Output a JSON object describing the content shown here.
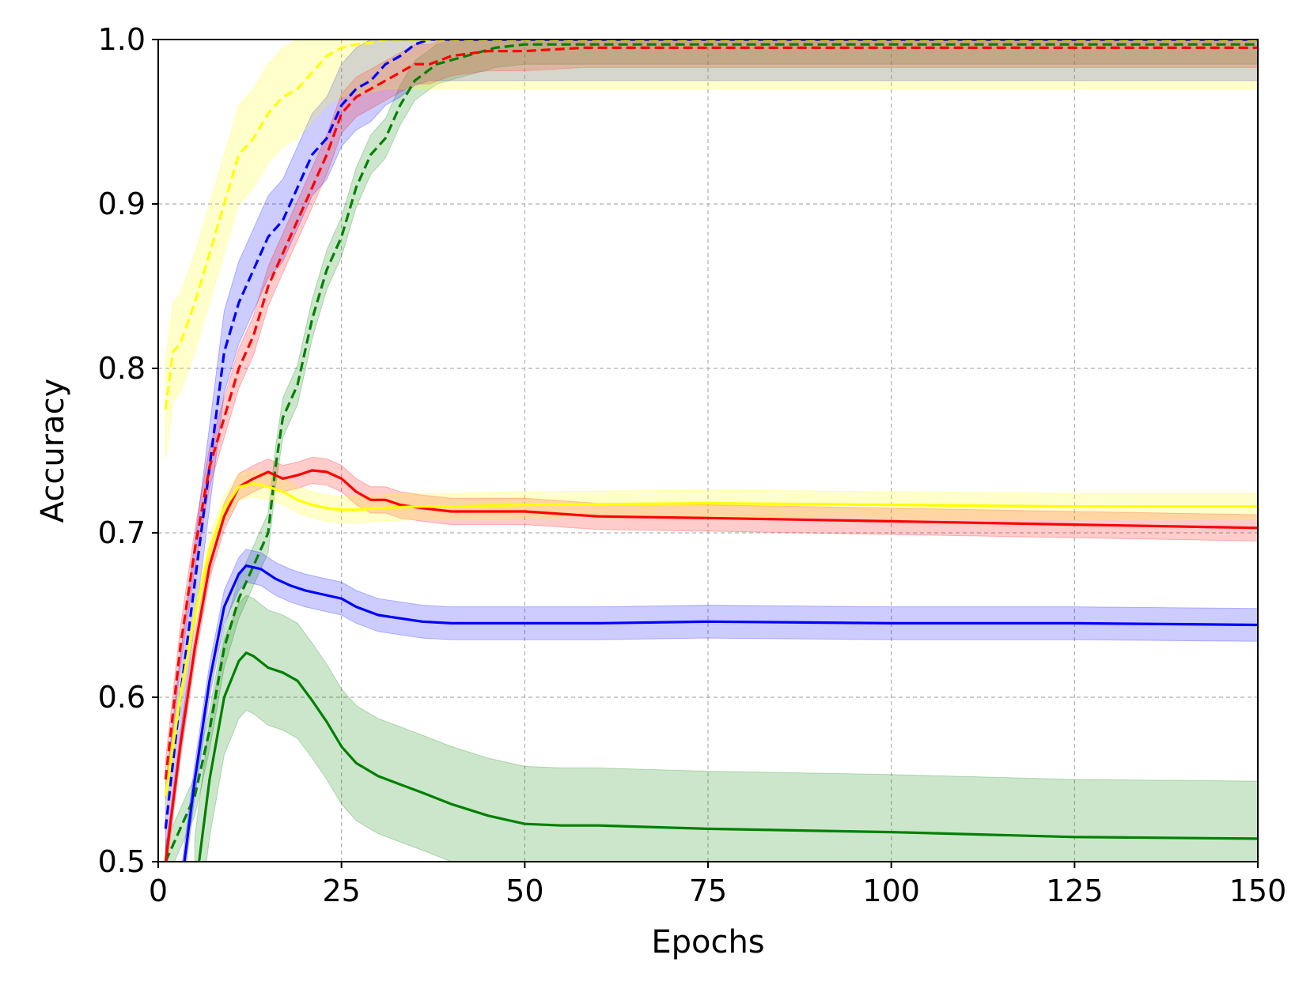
{
  "chart_data": {
    "type": "line",
    "title": "",
    "xlabel": "Epochs",
    "ylabel": "Accuracy",
    "xlim": [
      0,
      150
    ],
    "ylim": [
      0.5,
      1.0
    ],
    "xticks": [
      "0",
      "25",
      "50",
      "75",
      "100",
      "125",
      "150"
    ],
    "yticks": [
      "0.5",
      "0.6",
      "0.7",
      "0.8",
      "0.9",
      "1.0"
    ],
    "grid": true,
    "legend": "none",
    "series": [
      {
        "color": "#008000",
        "style": "dashed",
        "band": 0.012,
        "x": [
          1,
          3,
          5,
          7,
          9,
          11,
          13,
          15,
          16,
          17,
          19,
          21,
          23,
          25,
          27,
          29,
          31,
          33,
          35,
          38,
          42,
          46,
          50,
          150
        ],
        "y": [
          0.5,
          0.52,
          0.54,
          0.58,
          0.63,
          0.66,
          0.68,
          0.7,
          0.74,
          0.77,
          0.79,
          0.83,
          0.86,
          0.88,
          0.91,
          0.93,
          0.94,
          0.96,
          0.975,
          0.985,
          0.99,
          0.995,
          0.997,
          0.997
        ]
      },
      {
        "color": "#008000",
        "style": "solid",
        "band": 0.035,
        "x": [
          5,
          7,
          9,
          11,
          12,
          13,
          15,
          17,
          19,
          21,
          23,
          25,
          27,
          30,
          33,
          36,
          40,
          45,
          50,
          55,
          60,
          75,
          100,
          125,
          150
        ],
        "y": [
          0.48,
          0.55,
          0.6,
          0.622,
          0.627,
          0.625,
          0.618,
          0.615,
          0.61,
          0.598,
          0.585,
          0.57,
          0.56,
          0.552,
          0.547,
          0.542,
          0.535,
          0.528,
          0.523,
          0.522,
          0.522,
          0.52,
          0.518,
          0.515,
          0.514
        ]
      },
      {
        "color": "#0000ff",
        "style": "dashed",
        "band": 0.025,
        "x": [
          1,
          3,
          5,
          7,
          9,
          11,
          13,
          15,
          17,
          19,
          21,
          23,
          25,
          27,
          29,
          31,
          33,
          35,
          37,
          40,
          150
        ],
        "y": [
          0.52,
          0.6,
          0.67,
          0.74,
          0.81,
          0.84,
          0.86,
          0.88,
          0.89,
          0.91,
          0.93,
          0.94,
          0.96,
          0.97,
          0.975,
          0.985,
          0.99,
          0.997,
          1.0,
          1.0,
          1.0
        ]
      },
      {
        "color": "#0000ff",
        "style": "solid",
        "band": 0.01,
        "x": [
          3,
          5,
          7,
          9,
          11,
          12,
          14,
          16,
          18,
          20,
          22,
          25,
          27,
          30,
          33,
          36,
          40,
          45,
          50,
          60,
          75,
          100,
          125,
          150
        ],
        "y": [
          0.48,
          0.55,
          0.61,
          0.655,
          0.675,
          0.68,
          0.678,
          0.672,
          0.668,
          0.665,
          0.663,
          0.66,
          0.655,
          0.65,
          0.648,
          0.646,
          0.645,
          0.645,
          0.645,
          0.645,
          0.646,
          0.645,
          0.645,
          0.644
        ]
      },
      {
        "color": "#ff0000",
        "style": "dashed",
        "band": 0.012,
        "x": [
          1,
          3,
          5,
          7,
          9,
          11,
          13,
          15,
          17,
          19,
          21,
          23,
          25,
          27,
          29,
          31,
          33,
          35,
          37,
          40,
          45,
          50,
          58,
          150
        ],
        "y": [
          0.55,
          0.63,
          0.69,
          0.74,
          0.77,
          0.8,
          0.82,
          0.85,
          0.87,
          0.89,
          0.91,
          0.93,
          0.955,
          0.965,
          0.97,
          0.975,
          0.98,
          0.985,
          0.985,
          0.99,
          0.993,
          0.993,
          0.995,
          0.995
        ]
      },
      {
        "color": "#ff0000",
        "style": "solid",
        "band": 0.008,
        "x": [
          1,
          3,
          5,
          7,
          9,
          11,
          13,
          15,
          17,
          19,
          21,
          23,
          25,
          27,
          29,
          31,
          33,
          36,
          40,
          45,
          50,
          60,
          75,
          100,
          125,
          150
        ],
        "y": [
          0.5,
          0.57,
          0.63,
          0.68,
          0.71,
          0.728,
          0.733,
          0.737,
          0.733,
          0.735,
          0.738,
          0.737,
          0.733,
          0.725,
          0.72,
          0.72,
          0.717,
          0.715,
          0.713,
          0.713,
          0.713,
          0.71,
          0.709,
          0.707,
          0.705,
          0.703
        ]
      },
      {
        "color": "#ffff00",
        "style": "dashed",
        "band": 0.03,
        "x": [
          1,
          2,
          3,
          5,
          7,
          9,
          11,
          13,
          15,
          17,
          19,
          21,
          23,
          25,
          27,
          29,
          31,
          35,
          150
        ],
        "y": [
          0.775,
          0.81,
          0.815,
          0.84,
          0.87,
          0.9,
          0.93,
          0.94,
          0.955,
          0.965,
          0.97,
          0.98,
          0.99,
          0.995,
          0.997,
          0.998,
          1.0,
          1.0,
          1.0
        ]
      },
      {
        "color": "#ffff00",
        "style": "solid",
        "band": 0.008,
        "x": [
          1,
          3,
          5,
          7,
          9,
          11,
          13,
          15,
          17,
          19,
          21,
          23,
          25,
          27,
          30,
          35,
          40,
          50,
          75,
          100,
          125,
          150
        ],
        "y": [
          0.54,
          0.6,
          0.65,
          0.69,
          0.715,
          0.728,
          0.73,
          0.728,
          0.725,
          0.72,
          0.717,
          0.715,
          0.714,
          0.714,
          0.715,
          0.716,
          0.716,
          0.717,
          0.718,
          0.717,
          0.716,
          0.716
        ]
      }
    ]
  }
}
